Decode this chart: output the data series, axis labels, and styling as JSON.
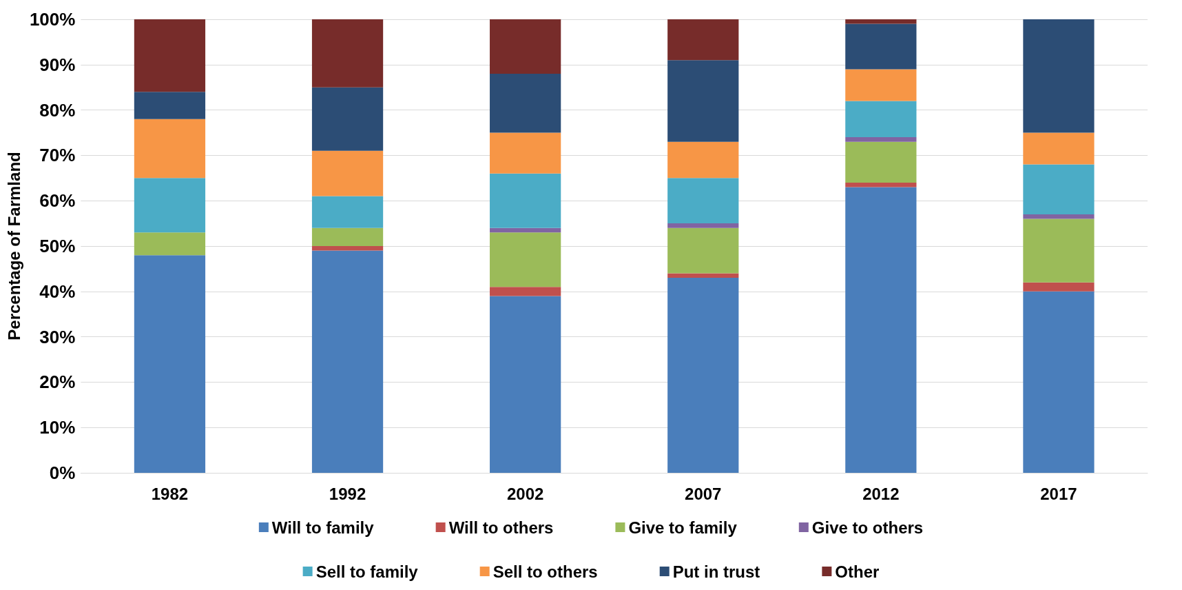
{
  "chart_data": {
    "type": "bar",
    "stacked": true,
    "ylabel": "Percentage of Farmland",
    "categories": [
      "1982",
      "1992",
      "2002",
      "2007",
      "2012",
      "2017"
    ],
    "series": [
      {
        "name": "Will to family",
        "color": "#4a7ebb",
        "values": [
          48,
          49,
          39,
          43,
          63,
          40
        ]
      },
      {
        "name": "Will to others",
        "color": "#c0504d",
        "values": [
          0,
          1,
          2,
          1,
          1,
          2
        ]
      },
      {
        "name": "Give to family",
        "color": "#9bbb59",
        "values": [
          5,
          4,
          12,
          10,
          9,
          14
        ]
      },
      {
        "name": "Give to others",
        "color": "#8064a2",
        "values": [
          0,
          0,
          1,
          1,
          1,
          1
        ]
      },
      {
        "name": "Sell to family",
        "color": "#4bacc6",
        "values": [
          12,
          7,
          12,
          10,
          8,
          11
        ]
      },
      {
        "name": "Sell to others",
        "color": "#f79646",
        "values": [
          13,
          10,
          9,
          8,
          7,
          7
        ]
      },
      {
        "name": "Put in trust",
        "color": "#2c4d75",
        "values": [
          6,
          14,
          13,
          18,
          10,
          25
        ]
      },
      {
        "name": "Other",
        "color": "#772c2a",
        "values": [
          16,
          15,
          12,
          9,
          1,
          0
        ]
      }
    ],
    "ylim": [
      0,
      100
    ],
    "yticks": [
      {
        "value": 0,
        "label": "0%"
      },
      {
        "value": 10,
        "label": "10%"
      },
      {
        "value": 20,
        "label": "20%"
      },
      {
        "value": 30,
        "label": "30%"
      },
      {
        "value": 40,
        "label": "40%"
      },
      {
        "value": 50,
        "label": "50%"
      },
      {
        "value": 60,
        "label": "60%"
      },
      {
        "value": 70,
        "label": "70%"
      },
      {
        "value": 80,
        "label": "80%"
      },
      {
        "value": 90,
        "label": "90%"
      },
      {
        "value": 100,
        "label": "100%"
      }
    ],
    "grid": "y",
    "legend": "bottom"
  }
}
